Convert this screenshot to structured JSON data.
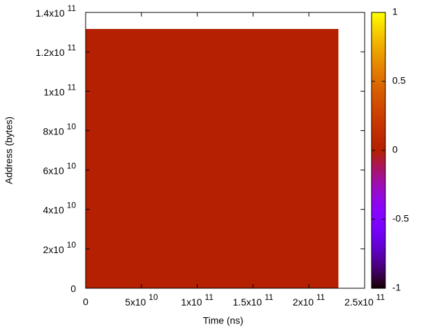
{
  "chart_data": {
    "type": "heatmap",
    "xlabel": "Time (ns)",
    "ylabel": "Address (bytes)",
    "xlim": [
      0,
      250000000000
    ],
    "ylim": [
      0,
      140000000000
    ],
    "xticks": [
      0,
      {
        "value": 50000000000,
        "label": "5x10",
        "exponent": "10"
      },
      {
        "value": 100000000000,
        "label": "1x10",
        "exponent": "11"
      },
      {
        "value": 150000000000,
        "label": "1.5x10",
        "exponent": "11"
      },
      {
        "value": 200000000000,
        "label": "2x10",
        "exponent": "11"
      },
      {
        "value": 250000000000,
        "label": "2.5x10",
        "exponent": "11"
      }
    ],
    "yticks": [
      0,
      {
        "value": 20000000000,
        "label": "2x10",
        "exponent": "10"
      },
      {
        "value": 40000000000,
        "label": "4x10",
        "exponent": "10"
      },
      {
        "value": 60000000000,
        "label": "6x10",
        "exponent": "10"
      },
      {
        "value": 80000000000,
        "label": "8x10",
        "exponent": "10"
      },
      {
        "value": 100000000000,
        "label": "1x10",
        "exponent": "11"
      },
      {
        "value": 120000000000,
        "label": "1.2x10",
        "exponent": "11"
      },
      {
        "value": 140000000000,
        "label": "1.4x10",
        "exponent": "11"
      }
    ],
    "cells": [
      {
        "x": [
          0,
          226500000000
        ],
        "y": [
          0,
          131600000000
        ],
        "value": 0
      }
    ],
    "cblim": [
      -1,
      1
    ],
    "cbticks": [
      -1,
      -0.5,
      0,
      0.5,
      1
    ]
  }
}
